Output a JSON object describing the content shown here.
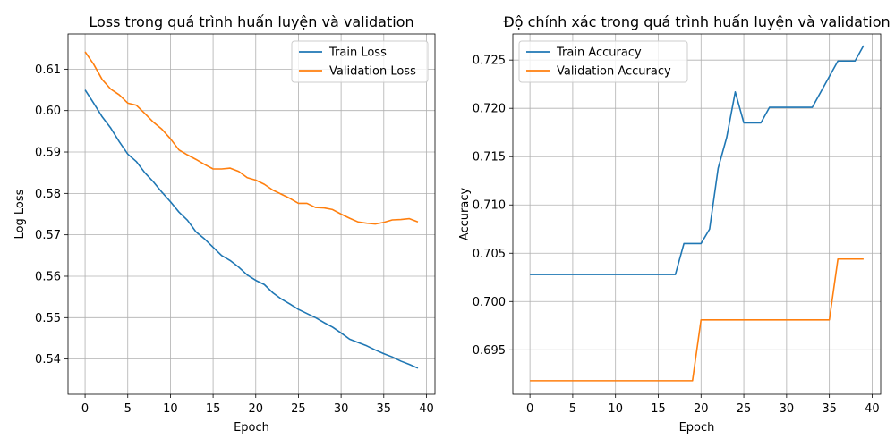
{
  "chart_data": [
    {
      "type": "line",
      "title": "Loss trong quá trình huấn luyện và validation",
      "xlabel": "Epoch",
      "ylabel": "Log Loss",
      "xlim": [
        -2,
        41
      ],
      "ylim": [
        0.5315,
        0.6185
      ],
      "xticks": [
        0,
        5,
        10,
        15,
        20,
        25,
        30,
        35,
        40
      ],
      "yticks": [
        0.54,
        0.55,
        0.56,
        0.57,
        0.58,
        0.59,
        0.6,
        0.61
      ],
      "ytick_labels": [
        "0.54",
        "0.55",
        "0.56",
        "0.57",
        "0.58",
        "0.59",
        "0.60",
        "0.61"
      ],
      "grid": true,
      "legend_position": "top-right",
      "series": [
        {
          "name": "Train Loss",
          "color": "#1f77b4",
          "x": [
            0,
            1,
            2,
            3,
            4,
            5,
            6,
            7,
            8,
            9,
            10,
            11,
            12,
            13,
            14,
            15,
            16,
            17,
            18,
            19,
            20,
            21,
            22,
            23,
            24,
            25,
            26,
            27,
            28,
            29,
            30,
            31,
            32,
            33,
            34,
            35,
            36,
            37,
            38,
            39
          ],
          "values": [
            0.605,
            0.6018,
            0.5985,
            0.5958,
            0.5925,
            0.5895,
            0.5877,
            0.585,
            0.5828,
            0.5803,
            0.578,
            0.5755,
            0.5735,
            0.5707,
            0.569,
            0.567,
            0.565,
            0.5638,
            0.5622,
            0.5603,
            0.559,
            0.558,
            0.556,
            0.5545,
            0.5533,
            0.552,
            0.551,
            0.55,
            0.5488,
            0.5477,
            0.5463,
            0.5448,
            0.544,
            0.5432,
            0.5422,
            0.5413,
            0.5405,
            0.5395,
            0.5387,
            0.5378
          ]
        },
        {
          "name": "Validation Loss",
          "color": "#ff7f0e",
          "x": [
            0,
            1,
            2,
            3,
            4,
            5,
            6,
            7,
            8,
            9,
            10,
            11,
            12,
            13,
            14,
            15,
            16,
            17,
            18,
            19,
            20,
            21,
            22,
            23,
            24,
            25,
            26,
            27,
            28,
            29,
            30,
            31,
            32,
            33,
            34,
            35,
            36,
            37,
            38,
            39
          ],
          "values": [
            0.6142,
            0.6112,
            0.6075,
            0.6052,
            0.6038,
            0.6018,
            0.6013,
            0.5993,
            0.5972,
            0.5955,
            0.5932,
            0.5905,
            0.5893,
            0.5882,
            0.587,
            0.5859,
            0.5859,
            0.5861,
            0.5853,
            0.5838,
            0.5832,
            0.5822,
            0.5808,
            0.5798,
            0.5788,
            0.5776,
            0.5776,
            0.5766,
            0.5765,
            0.5761,
            0.575,
            0.574,
            0.5731,
            0.5728,
            0.5726,
            0.573,
            0.5736,
            0.5737,
            0.5739,
            0.5731
          ]
        }
      ]
    },
    {
      "type": "line",
      "title": "Độ chính xác trong quá trình huấn luyện và validation",
      "xlabel": "Epoch",
      "ylabel": "Accuracy",
      "xlim": [
        -2,
        41
      ],
      "ylim": [
        0.6904,
        0.7277
      ],
      "xticks": [
        0,
        5,
        10,
        15,
        20,
        25,
        30,
        35,
        40
      ],
      "yticks": [
        0.695,
        0.7,
        0.705,
        0.71,
        0.715,
        0.72,
        0.725
      ],
      "ytick_labels": [
        "0.695",
        "0.700",
        "0.705",
        "0.710",
        "0.715",
        "0.720",
        "0.725"
      ],
      "grid": true,
      "legend_position": "top-left",
      "series": [
        {
          "name": "Train Accuracy",
          "color": "#1f77b4",
          "x": [
            0,
            1,
            2,
            3,
            4,
            5,
            6,
            7,
            8,
            9,
            10,
            11,
            12,
            13,
            14,
            15,
            16,
            17,
            18,
            19,
            20,
            21,
            22,
            23,
            24,
            25,
            26,
            27,
            28,
            29,
            30,
            31,
            32,
            33,
            34,
            35,
            36,
            37,
            38,
            39
          ],
          "values": [
            0.7028,
            0.7028,
            0.7028,
            0.7028,
            0.7028,
            0.7028,
            0.7028,
            0.7028,
            0.7028,
            0.7028,
            0.7028,
            0.7028,
            0.7028,
            0.7028,
            0.7028,
            0.7028,
            0.7028,
            0.7028,
            0.706,
            0.706,
            0.706,
            0.7075,
            0.7138,
            0.717,
            0.7217,
            0.7185,
            0.7185,
            0.7185,
            0.7201,
            0.7201,
            0.7201,
            0.7201,
            0.7201,
            0.7201,
            0.7217,
            0.7233,
            0.7249,
            0.7249,
            0.7249,
            0.7265
          ]
        },
        {
          "name": "Validation Accuracy",
          "color": "#ff7f0e",
          "x": [
            0,
            1,
            2,
            3,
            4,
            5,
            6,
            7,
            8,
            9,
            10,
            11,
            12,
            13,
            14,
            15,
            16,
            17,
            18,
            19,
            20,
            21,
            22,
            23,
            24,
            25,
            26,
            27,
            28,
            29,
            30,
            31,
            32,
            33,
            34,
            35,
            36,
            37,
            38,
            39
          ],
          "values": [
            0.6918,
            0.6918,
            0.6918,
            0.6918,
            0.6918,
            0.6918,
            0.6918,
            0.6918,
            0.6918,
            0.6918,
            0.6918,
            0.6918,
            0.6918,
            0.6918,
            0.6918,
            0.6918,
            0.6918,
            0.6918,
            0.6918,
            0.6918,
            0.6981,
            0.6981,
            0.6981,
            0.6981,
            0.6981,
            0.6981,
            0.6981,
            0.6981,
            0.6981,
            0.6981,
            0.6981,
            0.6981,
            0.6981,
            0.6981,
            0.6981,
            0.6981,
            0.7044,
            0.7044,
            0.7044,
            0.7044
          ]
        }
      ]
    }
  ]
}
